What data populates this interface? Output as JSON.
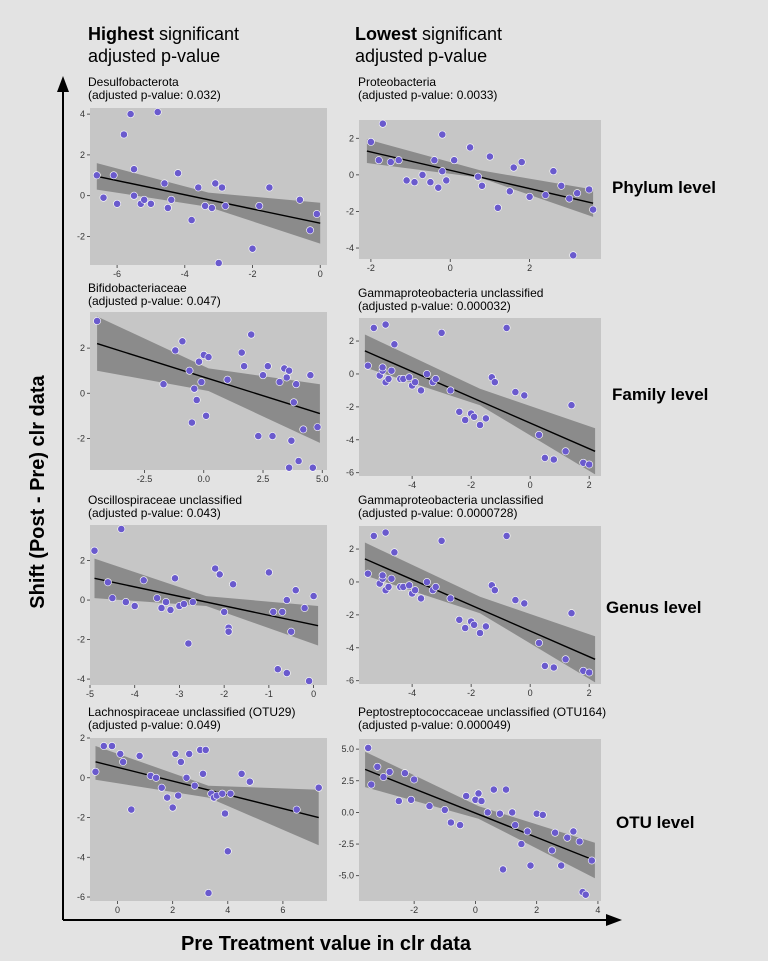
{
  "header": {
    "left_bold": "Highest",
    "left_rest": " significant",
    "left_line2": "adjusted p-value",
    "right_bold": "Lowest",
    "right_rest": " significant",
    "right_line2": "adjusted p-value"
  },
  "axes": {
    "x_title": "Pre Treatment value in clr data",
    "y_title": "Shift (Post - Pre) clr data"
  },
  "row_labels": [
    "Phylum level",
    "Family level",
    "Genus level",
    "OTU level"
  ],
  "colors": {
    "background": "#e3e3e3",
    "panel": "#c6c6c6",
    "point": "#6a5acd",
    "ribbon": "#808080",
    "line": "#000000"
  },
  "chart_data": [
    {
      "type": "scatter",
      "title_line1": "Desulfobacterota",
      "title_line2": "(adjusted p-value: 0.032)",
      "xlim": [
        -6.8,
        0.2
      ],
      "ylim": [
        -3.4,
        4.3
      ],
      "xticks": [
        -6,
        -4,
        -2,
        0
      ],
      "xtick_labels": [
        "-6",
        "-4",
        "-2",
        "0"
      ],
      "yticks": [
        -2,
        0,
        2,
        4
      ],
      "ytick_labels": [
        "-2",
        "0",
        "2",
        "4"
      ],
      "fit": [
        [
          -6.6,
          0.95
        ],
        [
          0,
          -1.35
        ]
      ],
      "ci": [
        [
          -6.6,
          1.6,
          0.3
        ],
        [
          -3.3,
          0.15,
          -0.55
        ],
        [
          0,
          -0.35,
          -2.35
        ]
      ],
      "x": [
        -6.6,
        -6.4,
        -6.1,
        -6.0,
        -5.8,
        -5.6,
        -5.5,
        -5.5,
        -5.3,
        -5.2,
        -5.0,
        -4.8,
        -4.6,
        -4.5,
        -4.4,
        -4.2,
        -3.8,
        -3.6,
        -3.4,
        -3.2,
        -3.1,
        -3.0,
        -2.9,
        -2.8,
        -2.0,
        -1.8,
        -1.5,
        -0.6,
        -0.3,
        -0.1
      ],
      "y": [
        1.0,
        -0.1,
        1.0,
        -0.4,
        3.0,
        4.0,
        1.3,
        0.0,
        -0.4,
        -0.2,
        -0.4,
        4.1,
        0.6,
        -0.6,
        -0.2,
        1.1,
        -1.2,
        0.4,
        -0.5,
        -0.6,
        0.6,
        -3.3,
        0.4,
        -0.5,
        -2.6,
        -0.5,
        0.4,
        -0.2,
        -1.7,
        -0.9
      ]
    },
    {
      "type": "scatter",
      "title_line1": "Proteobacteria",
      "title_line2": "(adjusted p-value: 0.0033)",
      "xlim": [
        -2.3,
        3.8
      ],
      "ylim": [
        -4.6,
        3.0
      ],
      "xticks": [
        -2,
        0,
        2
      ],
      "xtick_labels": [
        "-2",
        "0",
        "2"
      ],
      "yticks": [
        -4,
        -2,
        0,
        2
      ],
      "ytick_labels": [
        "-4",
        "-2",
        "0",
        "2"
      ],
      "fit": [
        [
          -2.1,
          1.3
        ],
        [
          3.6,
          -1.55
        ]
      ],
      "ci": [
        [
          -2.1,
          1.95,
          0.65
        ],
        [
          0.75,
          0.25,
          -0.15
        ],
        [
          3.6,
          -0.8,
          -2.3
        ]
      ],
      "x": [
        -2.0,
        -1.8,
        -1.7,
        -1.5,
        -1.3,
        -1.1,
        -0.9,
        -0.7,
        -0.5,
        -0.4,
        -0.3,
        -0.2,
        -0.2,
        -0.1,
        0.1,
        0.5,
        0.7,
        0.8,
        1.0,
        1.2,
        1.5,
        1.6,
        1.8,
        2.0,
        2.4,
        2.6,
        2.8,
        3.0,
        3.1,
        3.2,
        3.5,
        3.6
      ],
      "y": [
        1.8,
        0.8,
        2.8,
        0.7,
        0.8,
        -0.3,
        -0.4,
        0.0,
        -0.4,
        0.8,
        -0.7,
        0.2,
        2.2,
        -0.3,
        0.8,
        1.5,
        -0.1,
        -0.6,
        1.0,
        -1.8,
        -0.9,
        0.4,
        0.7,
        -1.2,
        -1.1,
        0.2,
        -0.6,
        -1.3,
        -4.4,
        -1.0,
        -0.8,
        -1.9
      ]
    },
    {
      "type": "scatter",
      "title_line1": "Bifidobacteriaceae",
      "title_line2": "(adjusted p-value: 0.047)",
      "xlim": [
        -4.8,
        5.2
      ],
      "ylim": [
        -3.4,
        3.6
      ],
      "xticks": [
        -2.5,
        0.0,
        2.5,
        5.0
      ],
      "xtick_labels": [
        "-2.5",
        "0.0",
        "2.5",
        "5.0"
      ],
      "yticks": [
        -2,
        0,
        2
      ],
      "ytick_labels": [
        "-2",
        "0",
        "2"
      ],
      "fit": [
        [
          -4.5,
          2.2
        ],
        [
          4.9,
          -0.9
        ]
      ],
      "ci": [
        [
          -4.5,
          3.4,
          1.0
        ],
        [
          0.2,
          1.1,
          0.1
        ],
        [
          4.9,
          0.4,
          -2.2
        ]
      ],
      "x": [
        -4.5,
        -1.7,
        -1.2,
        -0.9,
        -0.6,
        -0.5,
        -0.4,
        -0.3,
        -0.2,
        -0.1,
        0.0,
        0.1,
        0.2,
        1.0,
        1.6,
        1.7,
        2.0,
        2.3,
        2.5,
        2.7,
        2.9,
        3.2,
        3.4,
        3.5,
        3.6,
        3.6,
        3.7,
        3.8,
        3.9,
        4.0,
        4.2,
        4.5,
        4.6,
        4.8
      ],
      "y": [
        3.2,
        0.4,
        1.9,
        2.3,
        1.0,
        -1.3,
        0.2,
        -0.3,
        1.4,
        0.5,
        1.7,
        -1.0,
        1.6,
        0.6,
        1.8,
        1.2,
        2.6,
        -1.9,
        0.8,
        1.2,
        -1.9,
        0.5,
        1.1,
        0.7,
        1.0,
        -3.3,
        -2.1,
        -0.4,
        0.4,
        -3.0,
        -1.6,
        0.8,
        -3.3,
        -1.5
      ]
    },
    {
      "type": "scatter",
      "title_line1": "Gammaproteobacteria unclassified",
      "title_line2": "(adjusted p-value: 0.000032)",
      "xlim": [
        -5.8,
        2.4
      ],
      "ylim": [
        -6.2,
        3.4
      ],
      "xticks": [
        -4,
        -2,
        0,
        2
      ],
      "xtick_labels": [
        "-4",
        "-2",
        "0",
        "2"
      ],
      "yticks": [
        -6,
        -4,
        -2,
        0,
        2
      ],
      "ytick_labels": [
        "-6",
        "-4",
        "-2",
        "0",
        "2"
      ],
      "fit": [
        [
          -5.6,
          1.4
        ],
        [
          2.2,
          -4.7
        ]
      ],
      "ci": [
        [
          -5.6,
          2.4,
          0.4
        ],
        [
          -1.7,
          -0.9,
          -1.9
        ],
        [
          2.2,
          -3.3,
          -6.1
        ]
      ],
      "x": [
        -5.5,
        -5.3,
        -5.1,
        -5.0,
        -5.0,
        -4.9,
        -4.9,
        -4.8,
        -4.7,
        -4.6,
        -4.4,
        -4.3,
        -4.1,
        -4.0,
        -3.9,
        -3.7,
        -3.5,
        -3.3,
        -3.2,
        -3.0,
        -2.7,
        -2.4,
        -2.2,
        -2.0,
        -1.9,
        -1.7,
        -1.5,
        -1.3,
        -1.2,
        -0.8,
        -0.5,
        -0.2,
        0.3,
        0.5,
        0.8,
        1.2,
        1.4,
        1.8,
        2.0
      ],
      "y": [
        0.5,
        2.8,
        -0.1,
        0.2,
        0.4,
        -0.5,
        3.0,
        -0.3,
        0.2,
        1.8,
        -0.3,
        -0.3,
        -0.2,
        -0.7,
        -0.5,
        -1.0,
        0.0,
        -0.5,
        -0.3,
        2.5,
        -1.0,
        -2.3,
        -2.8,
        -2.4,
        -2.6,
        -3.1,
        -2.7,
        -0.2,
        -0.5,
        2.8,
        -1.1,
        -1.3,
        -3.7,
        -5.1,
        -5.2,
        -4.7,
        -1.9,
        -5.4,
        -5.5
      ]
    },
    {
      "type": "scatter",
      "title_line1": "Oscillospiraceae unclassified",
      "title_line2": "(adjusted p-value: 0.043)",
      "xlim": [
        -5.0,
        0.3
      ],
      "ylim": [
        -4.3,
        3.8
      ],
      "xticks": [
        -5,
        -4,
        -3,
        -2,
        -1,
        0
      ],
      "xtick_labels": [
        "-5",
        "-4",
        "-3",
        "-2",
        "-1",
        "0"
      ],
      "yticks": [
        -4,
        -2,
        0,
        2
      ],
      "ytick_labels": [
        "-4",
        "-2",
        "0",
        "2"
      ],
      "fit": [
        [
          -4.9,
          1.1
        ],
        [
          0.1,
          -1.3
        ]
      ],
      "ci": [
        [
          -4.9,
          2.1,
          0.1
        ],
        [
          -2.4,
          0.2,
          -0.3
        ],
        [
          0.1,
          -0.3,
          -2.3
        ]
      ],
      "x": [
        -4.9,
        -4.6,
        -4.5,
        -4.3,
        -4.2,
        -4.0,
        -3.8,
        -3.5,
        -3.4,
        -3.3,
        -3.2,
        -3.1,
        -3.0,
        -2.9,
        -2.8,
        -2.7,
        -2.2,
        -2.1,
        -2.0,
        -1.9,
        -1.9,
        -1.8,
        -1.0,
        -0.9,
        -0.8,
        -0.7,
        -0.6,
        -0.6,
        -0.5,
        -0.4,
        -0.2,
        -0.1,
        0.0
      ],
      "y": [
        2.5,
        0.9,
        0.1,
        3.6,
        -0.1,
        -0.3,
        1.0,
        0.1,
        -0.4,
        -0.1,
        -0.5,
        1.1,
        -0.3,
        -0.2,
        -2.2,
        -0.1,
        1.6,
        1.3,
        -0.6,
        -1.4,
        -1.6,
        0.8,
        1.4,
        -0.6,
        -3.5,
        -0.6,
        0.0,
        -3.7,
        -1.6,
        0.5,
        -0.4,
        -4.1,
        0.2
      ]
    },
    {
      "type": "scatter",
      "title_line1": "Gammaproteobacteria unclassified",
      "title_line2": "(adjusted p-value: 0.0000728)",
      "xlim": [
        -5.8,
        2.4
      ],
      "ylim": [
        -6.2,
        3.4
      ],
      "xticks": [
        -4,
        -2,
        0,
        2
      ],
      "xtick_labels": [
        "-4",
        "-2",
        "0",
        "2"
      ],
      "yticks": [
        -6,
        -4,
        -2,
        0,
        2
      ],
      "ytick_labels": [
        "-6",
        "-4",
        "-2",
        "0",
        "2"
      ],
      "fit": [
        [
          -5.6,
          1.4
        ],
        [
          2.2,
          -4.7
        ]
      ],
      "ci": [
        [
          -5.6,
          2.4,
          0.4
        ],
        [
          -1.7,
          -0.9,
          -1.9
        ],
        [
          2.2,
          -3.3,
          -6.1
        ]
      ],
      "x": [
        -5.5,
        -5.3,
        -5.1,
        -5.0,
        -5.0,
        -4.9,
        -4.9,
        -4.8,
        -4.7,
        -4.6,
        -4.4,
        -4.3,
        -4.1,
        -4.0,
        -3.9,
        -3.7,
        -3.5,
        -3.3,
        -3.2,
        -3.0,
        -2.7,
        -2.4,
        -2.2,
        -2.0,
        -1.9,
        -1.7,
        -1.5,
        -1.3,
        -1.2,
        -0.8,
        -0.5,
        -0.2,
        0.3,
        0.5,
        0.8,
        1.2,
        1.4,
        1.8,
        2.0
      ],
      "y": [
        0.5,
        2.8,
        -0.1,
        0.2,
        0.4,
        -0.5,
        3.0,
        -0.3,
        0.2,
        1.8,
        -0.3,
        -0.3,
        -0.2,
        -0.7,
        -0.5,
        -1.0,
        0.0,
        -0.5,
        -0.3,
        2.5,
        -1.0,
        -2.3,
        -2.8,
        -2.4,
        -2.6,
        -3.1,
        -2.7,
        -0.2,
        -0.5,
        2.8,
        -1.1,
        -1.3,
        -3.7,
        -5.1,
        -5.2,
        -4.7,
        -1.9,
        -5.4,
        -5.5
      ]
    },
    {
      "type": "scatter",
      "title_line1": "Lachnospiraceae unclassified (OTU29)",
      "title_line2": "(adjusted p-value: 0.049)",
      "xlim": [
        -1.0,
        7.6
      ],
      "ylim": [
        -6.2,
        2.0
      ],
      "xticks": [
        0,
        2,
        4,
        6
      ],
      "xtick_labels": [
        "0",
        "2",
        "4",
        "6"
      ],
      "yticks": [
        -6,
        -4,
        -2,
        0,
        2
      ],
      "ytick_labels": [
        "-6",
        "-4",
        "-2",
        "0",
        "2"
      ],
      "fit": [
        [
          -0.8,
          0.8
        ],
        [
          7.3,
          -2.0
        ]
      ],
      "ci": [
        [
          -0.8,
          1.6,
          -0.1
        ],
        [
          3.3,
          -0.4,
          -1.0
        ],
        [
          7.3,
          -0.6,
          -3.4
        ]
      ],
      "x": [
        -0.8,
        -0.5,
        -0.2,
        0.1,
        0.2,
        0.5,
        0.8,
        1.2,
        1.4,
        1.6,
        1.8,
        2.0,
        2.1,
        2.2,
        2.3,
        2.5,
        2.6,
        2.8,
        3.0,
        3.1,
        3.2,
        3.3,
        3.4,
        3.5,
        3.6,
        3.8,
        3.9,
        4.0,
        4.1,
        4.5,
        4.8,
        6.5,
        7.3
      ],
      "y": [
        0.3,
        1.6,
        1.6,
        1.2,
        0.8,
        -1.6,
        1.1,
        0.1,
        0.0,
        -0.5,
        -1.0,
        -1.5,
        1.2,
        -0.9,
        0.8,
        0.0,
        1.2,
        -0.4,
        1.4,
        0.2,
        1.4,
        -5.8,
        -0.8,
        -1.0,
        -0.9,
        -0.8,
        -1.8,
        -3.7,
        -0.8,
        0.2,
        -0.2,
        -1.6,
        -0.5
      ]
    },
    {
      "type": "scatter",
      "title_line1": "Peptostreptococcaceae unclassified (OTU164)",
      "title_line2": "(adjusted p-value: 0.000049)",
      "xlim": [
        -3.8,
        4.1
      ],
      "ylim": [
        -7.0,
        5.8
      ],
      "xticks": [
        -2,
        0,
        2,
        4
      ],
      "xtick_labels": [
        "-2",
        "0",
        "2",
        "4"
      ],
      "yticks": [
        -5.0,
        -2.5,
        0.0,
        2.5,
        5.0
      ],
      "ytick_labels": [
        "-5.0",
        "-2.5",
        "0.0",
        "2.5",
        "5.0"
      ],
      "fit": [
        [
          -3.6,
          3.4
        ],
        [
          3.9,
          -3.8
        ]
      ],
      "ci": [
        [
          -3.6,
          4.8,
          2.0
        ],
        [
          0.1,
          0.5,
          -0.5
        ],
        [
          3.9,
          -2.4,
          -5.2
        ]
      ],
      "x": [
        -3.5,
        -3.4,
        -3.2,
        -3.0,
        -2.8,
        -2.5,
        -2.3,
        -2.1,
        -2.0,
        -1.5,
        -1.0,
        -0.8,
        -0.5,
        -0.3,
        0.0,
        0.1,
        0.2,
        0.4,
        0.6,
        0.8,
        0.9,
        1.0,
        1.2,
        1.3,
        1.5,
        1.7,
        1.8,
        2.0,
        2.2,
        2.5,
        2.6,
        2.8,
        3.0,
        3.2,
        3.4,
        3.5,
        3.6,
        3.8
      ],
      "y": [
        5.1,
        2.2,
        3.6,
        2.8,
        3.2,
        0.9,
        3.1,
        1.0,
        2.6,
        0.5,
        0.2,
        -0.8,
        -1.0,
        1.3,
        1.0,
        1.5,
        0.9,
        0.0,
        1.8,
        -0.1,
        -4.5,
        1.8,
        0.0,
        -1.0,
        -2.5,
        -1.5,
        -4.2,
        -0.1,
        -0.2,
        -3.0,
        -1.6,
        -4.2,
        -2.0,
        -1.5,
        -2.3,
        -6.3,
        -6.5,
        -3.8
      ]
    }
  ]
}
